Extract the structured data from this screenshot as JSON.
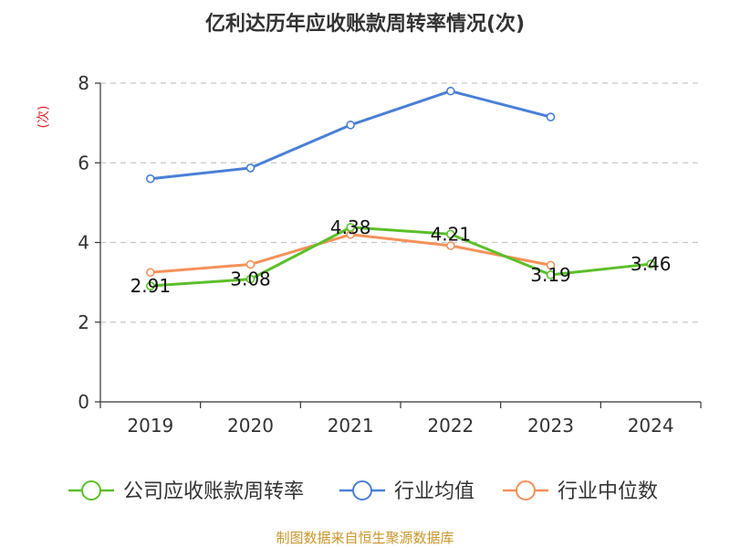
{
  "chart_data": {
    "type": "line",
    "title": "亿利达历年应收账款周转率情况(次)",
    "ylabel": "(次)",
    "xlabel": "",
    "categories": [
      "2019",
      "2020",
      "2021",
      "2022",
      "2023",
      "2024"
    ],
    "ylim": [
      0,
      8
    ],
    "yticks": [
      0,
      2,
      4,
      6,
      8
    ],
    "grid": true,
    "legend_position": "bottom",
    "series": [
      {
        "name": "公司应收账款周转率",
        "color": "#5bbf2a",
        "values": [
          2.91,
          3.08,
          4.38,
          4.21,
          3.19,
          3.46
        ],
        "data_labels": [
          "2.91",
          "3.08",
          "4.38",
          "4.21",
          "3.19",
          "3.46"
        ]
      },
      {
        "name": "行业均值",
        "color": "#4a7fd6",
        "values": [
          5.6,
          5.87,
          6.95,
          7.8,
          7.15,
          null
        ]
      },
      {
        "name": "行业中位数",
        "color": "#f4915a",
        "values": [
          3.25,
          3.45,
          4.2,
          3.92,
          3.43,
          null
        ]
      }
    ],
    "source": "制图数据来自恒生聚源数据库"
  }
}
